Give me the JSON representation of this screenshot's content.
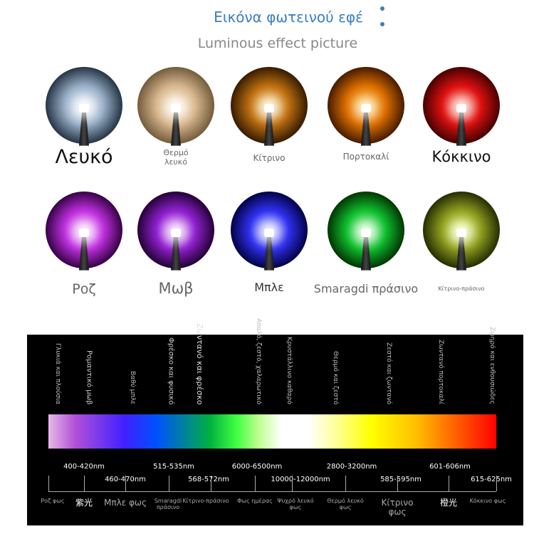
{
  "header": {
    "title": "Εικόνα φωτεινού εφέ",
    "subtitle": "Luminous effect picture"
  },
  "leds": [
    {
      "label": "Λευκό"
    },
    {
      "label": "Θερμό λευκό"
    },
    {
      "label": "Κίτρινο"
    },
    {
      "label": "Πορτοκαλί"
    },
    {
      "label": "Κόκκινο"
    },
    {
      "label": "Ροζ"
    },
    {
      "label": "Μωβ"
    },
    {
      "label": "Μπλε"
    },
    {
      "label": "Smaragdi πράσινο"
    },
    {
      "label": "Κίτρινο-πράσινο"
    }
  ],
  "spectrum": {
    "descriptions": [
      "Γλυκιά και πλούσια",
      "Ρομαντικό μωβ",
      "Βαθύ μπλε",
      "Φρέσκο και φυσικό",
      "Ζωντανό και φρέσκο",
      "Απαλό, ζεστό, χαλαρωτικό",
      "Κρυστάλλινο καθαρό",
      "Θερμό και ζεστό",
      "Ζεστό και ζωντανό",
      "Ζωντανό πορτοκαλί",
      "Ζωηρό και ενθουσιώδες"
    ],
    "wavelengths": [
      "400-420nm",
      "460-470nm",
      "515-535nm",
      "568-572nm",
      "6000-6500nm",
      "10000-12000nm",
      "2800-3200nm",
      "585-595nm",
      "601-606nm",
      "615-625nm"
    ],
    "names": [
      "Ροζ φως",
      "紫光",
      "Μπλε φως",
      "Smaragdi πράσινο",
      "Κίτρινο-πράσινο",
      "Φως ημέρας",
      "Ψυχρό λευκό φως",
      "Θερμό λευκό φως",
      "Κίτρινο φως",
      "橙光",
      "Κόκκινο φως"
    ]
  }
}
